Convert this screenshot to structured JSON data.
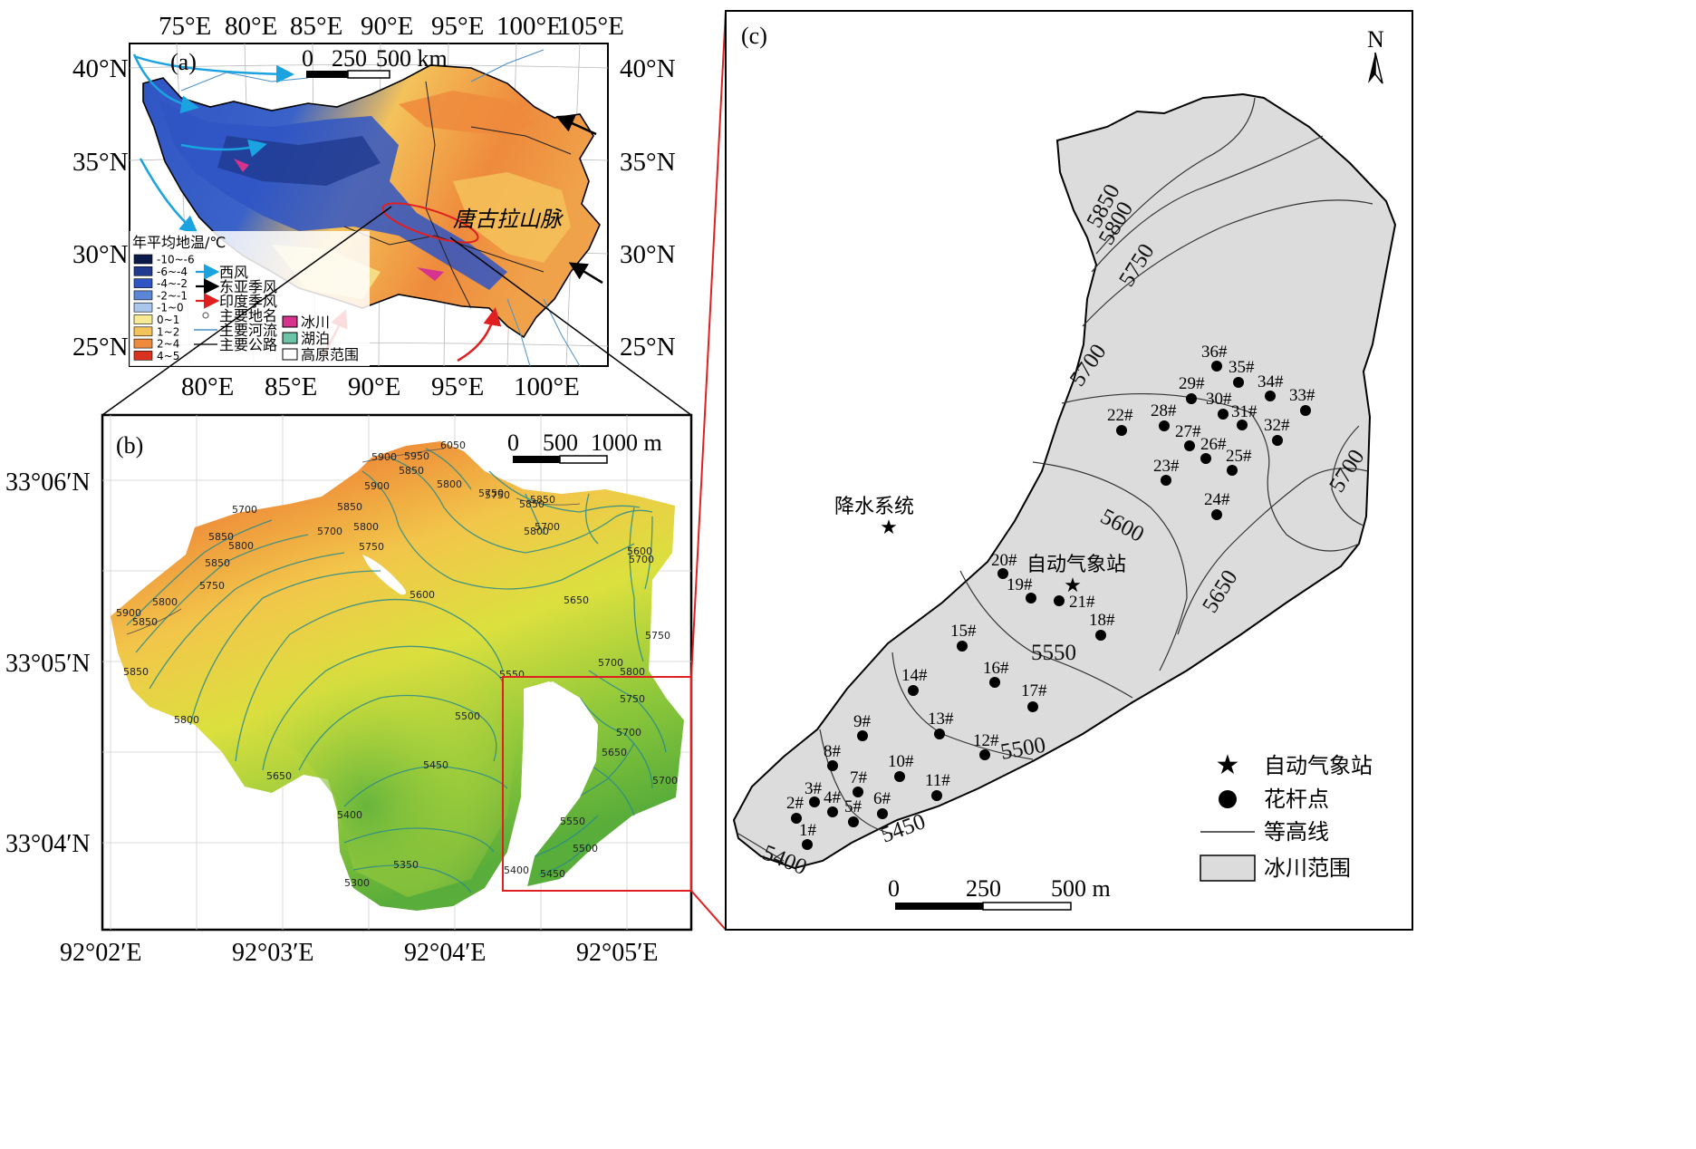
{
  "panels": {
    "a": {
      "label": "(a)",
      "lon_ticks_top": [
        "75°E",
        "80°E",
        "85°E",
        "90°E",
        "95°E",
        "100°E",
        "105°E"
      ],
      "lon_ticks_bottom": [
        "80°E",
        "85°E",
        "90°E",
        "95°E",
        "100°E"
      ],
      "lat_ticks": [
        "40°N",
        "35°N",
        "30°N",
        "25°N"
      ],
      "scale_labels": [
        "0",
        "250",
        "500 km"
      ],
      "region_label": "唐古拉山脉",
      "legend_title": "年平均地温/℃",
      "temp_classes": [
        {
          "label": "-10~-6",
          "color": "#0c1a4a"
        },
        {
          "label": "-6~-4",
          "color": "#1f3a8f"
        },
        {
          "label": "-4~-2",
          "color": "#2f55c4"
        },
        {
          "label": "-2~-1",
          "color": "#5b86d6"
        },
        {
          "label": "-1~0",
          "color": "#a9c6ec"
        },
        {
          "label": "0~1",
          "color": "#f7ea93"
        },
        {
          "label": "1~2",
          "color": "#f4c25a"
        },
        {
          "label": "2~4",
          "color": "#ee8a3c"
        },
        {
          "label": "4~5",
          "color": "#d9331f"
        }
      ],
      "legend_items": [
        {
          "label": "西风",
          "symbol": "arrow",
          "color": "#1aa3e0"
        },
        {
          "label": "东亚季风",
          "symbol": "arrow",
          "color": "#000000"
        },
        {
          "label": "印度季风",
          "symbol": "arrow",
          "color": "#e02020"
        },
        {
          "label": "主要地名",
          "symbol": "dot",
          "color": "#666666"
        },
        {
          "label": "主要河流",
          "symbol": "line",
          "color": "#4a90c8"
        },
        {
          "label": "主要公路",
          "symbol": "line",
          "color": "#222222"
        }
      ],
      "legend_items_right": [
        {
          "label": "冰川",
          "color": "#d6338f"
        },
        {
          "label": "湖泊",
          "color": "#6cc4a8"
        },
        {
          "label": "高原范围",
          "color": "#ffffff"
        }
      ]
    },
    "b": {
      "label": "(b)",
      "lon_ticks": [
        "92°02′E",
        "92°03′E",
        "92°04′E",
        "92°05′E"
      ],
      "lat_ticks": [
        "33°06′N",
        "33°05′N",
        "33°04′N"
      ],
      "scale_labels": [
        "0",
        "500",
        "1000 m"
      ],
      "contour_labels": [
        "6050",
        "5950",
        "5900",
        "5850",
        "5800",
        "5750",
        "5900",
        "5850",
        "5800",
        "5850",
        "5700",
        "5850",
        "5800",
        "5700",
        "5750",
        "5850",
        "5800",
        "5750",
        "5700",
        "5900",
        "5850",
        "5800",
        "5650",
        "5700",
        "5600",
        "5850",
        "5750",
        "5850",
        "5700",
        "5750",
        "5800",
        "5550",
        "5800",
        "5750",
        "5700",
        "5650",
        "5650",
        "5500",
        "5450",
        "5700",
        "5600",
        "5400",
        "5550",
        "5500",
        "5350",
        "5300",
        "5400",
        "5450"
      ]
    },
    "c": {
      "label": "(c)",
      "north": "N",
      "precip_label": "降水系统",
      "station_label": "自动气象站",
      "contour_labels": [
        "5850",
        "5800",
        "5750",
        "5700",
        "5700",
        "5650",
        "5600",
        "5550",
        "5500",
        "5450",
        "5400"
      ],
      "points": [
        "1#",
        "2#",
        "3#",
        "4#",
        "5#",
        "6#",
        "7#",
        "8#",
        "9#",
        "10#",
        "11#",
        "12#",
        "13#",
        "14#",
        "15#",
        "16#",
        "17#",
        "18#",
        "19#",
        "20#",
        "21#",
        "22#",
        "23#",
        "24#",
        "25#",
        "26#",
        "27#",
        "28#",
        "29#",
        "30#",
        "31#",
        "32#",
        "33#",
        "34#",
        "35#",
        "36#"
      ],
      "scale_labels": [
        "0",
        "250",
        "500 m"
      ],
      "legend": [
        "自动气象站",
        "花杆点",
        "等高线",
        "冰川范围"
      ]
    }
  }
}
